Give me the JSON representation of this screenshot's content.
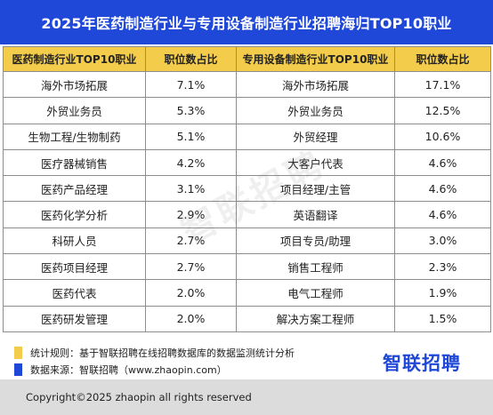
{
  "title": "2025年医药制造行业与专用设备制造行业招聘海归TOP10职业",
  "chart_data": {
    "type": "table",
    "columns": [
      "医药制造行业TOP10职业",
      "职位数占比",
      "专用设备制造行业TOP10职业",
      "职位数占比"
    ],
    "rows": [
      [
        "海外市场拓展",
        "7.1%",
        "海外市场拓展",
        "17.1%"
      ],
      [
        "外贸业务员",
        "5.3%",
        "外贸业务员",
        "12.5%"
      ],
      [
        "生物工程/生物制药",
        "5.1%",
        "外贸经理",
        "10.6%"
      ],
      [
        "医疗器械销售",
        "4.2%",
        "大客户代表",
        "4.6%"
      ],
      [
        "医药产品经理",
        "3.1%",
        "项目经理/主管",
        "4.6%"
      ],
      [
        "医药化学分析",
        "2.9%",
        "英语翻译",
        "4.6%"
      ],
      [
        "科研人员",
        "2.7%",
        "项目专员/助理",
        "3.0%"
      ],
      [
        "医药项目经理",
        "2.7%",
        "销售工程师",
        "2.3%"
      ],
      [
        "医药代表",
        "2.0%",
        "电气工程师",
        "1.9%"
      ],
      [
        "医药研发管理",
        "2.0%",
        "解决方案工程师",
        "1.5%"
      ]
    ]
  },
  "watermark": "智联招聘",
  "notes": [
    {
      "text": "统计规则：基于智联招聘在线招聘数据库的数据监测统计分析",
      "color": "#f2cc4a"
    },
    {
      "text": "数据来源：智联招聘（www.zhaopin.com）",
      "color": "#1f47d8"
    }
  ],
  "logo": "智联招聘",
  "copyright": "Copyright©2025 zhaopin all rights reserved",
  "colors": {
    "header_bg": "#1f47d8",
    "column_header_bg": "#f2cc4a",
    "footer_bg": "#dcdcdc"
  }
}
